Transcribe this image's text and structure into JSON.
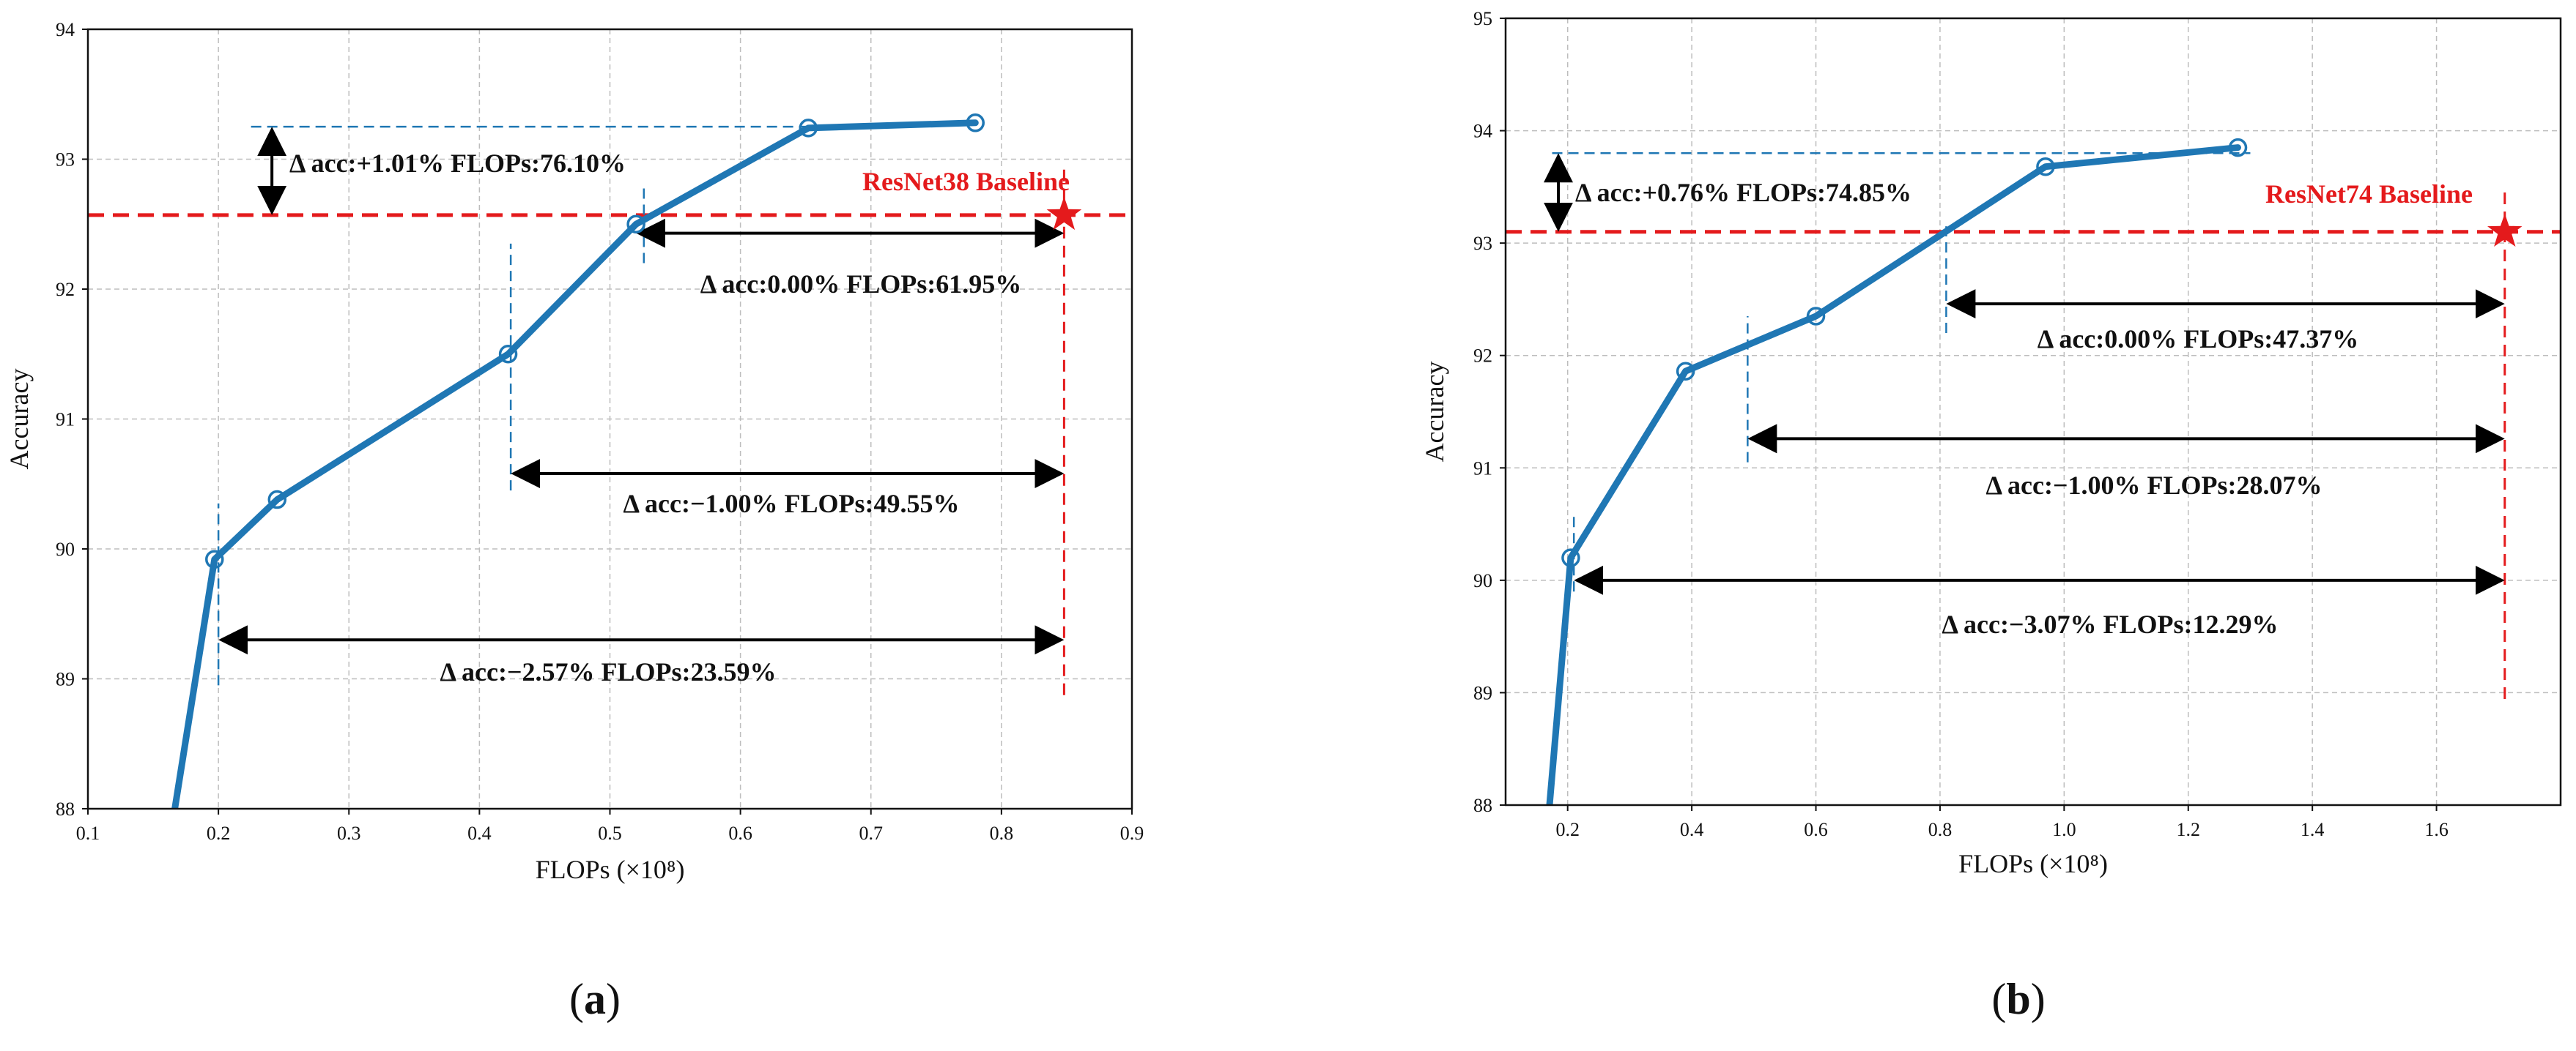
{
  "chart_data": [
    {
      "type": "line",
      "panel_label": "a",
      "xlabel": "FLOPs (×10⁸)",
      "ylabel": "Accuracy",
      "xlim": [
        0.1,
        0.9
      ],
      "ylim": [
        88,
        94
      ],
      "x_ticks": [
        "0.1",
        "0.2",
        "0.3",
        "0.4",
        "0.5",
        "0.6",
        "0.7",
        "0.8",
        "0.9"
      ],
      "y_ticks": [
        "88",
        "89",
        "90",
        "91",
        "92",
        "93",
        "94"
      ],
      "grid": true,
      "colors": {
        "line": "#1f77b4",
        "baseline": "#e41a1c",
        "arrow": "#000000"
      },
      "series": [
        {
          "x": [
            0.165,
            0.197,
            0.245,
            0.422,
            0.52,
            0.652,
            0.78
          ],
          "y": [
            87.9,
            89.92,
            90.38,
            91.5,
            92.5,
            93.24,
            93.28
          ]
        }
      ],
      "baseline": {
        "label": "ResNet38 Baseline",
        "x": 0.848,
        "y": 92.57
      },
      "annotations": [
        {
          "text": "Δ acc:+1.01%  FLOPs:76.10%",
          "kind": "vertical",
          "x": 0.241,
          "y1": 92.57,
          "y2": 93.25,
          "dash_x_from": 0.225,
          "dash_x_to": 0.652,
          "dash_y": 93.25
        },
        {
          "text": "Δ acc:0.00%   FLOPs:61.95%",
          "kind": "horizontal",
          "y": 92.43,
          "x1": 0.52,
          "x2": 0.848,
          "dash_x": 0.526,
          "dash_y1": 92.2,
          "dash_y2": 92.8
        },
        {
          "text": "Δ acc:−1.00%   FLOPs:49.55%",
          "kind": "horizontal",
          "y": 90.58,
          "x1": 0.424,
          "x2": 0.848,
          "dash_x": 0.424,
          "dash_y1": 90.45,
          "dash_y2": 92.35
        },
        {
          "text": "Δ acc:−2.57%   FLOPs:23.59%",
          "kind": "horizontal",
          "y": 89.3,
          "x1": 0.2,
          "x2": 0.848,
          "dash_x": 0.2,
          "dash_y1": 88.95,
          "dash_y2": 90.35
        }
      ]
    },
    {
      "type": "line",
      "panel_label": "b",
      "xlabel": "FLOPs (×10⁸)",
      "ylabel": "Accuracy",
      "xlim": [
        0.1,
        1.8
      ],
      "ylim": [
        88,
        95
      ],
      "x_ticks": [
        "0.2",
        "0.4",
        "0.6",
        "0.8",
        "1.0",
        "1.2",
        "1.4",
        "1.6"
      ],
      "y_ticks": [
        "88",
        "89",
        "90",
        "91",
        "92",
        "93",
        "94",
        "95"
      ],
      "grid": true,
      "colors": {
        "line": "#1f77b4",
        "baseline": "#e41a1c",
        "arrow": "#000000"
      },
      "series": [
        {
          "x": [
            0.17,
            0.205,
            0.39,
            0.6,
            0.97,
            1.28
          ],
          "y": [
            87.95,
            90.2,
            91.86,
            92.35,
            93.68,
            93.85
          ]
        }
      ],
      "baseline": {
        "label": "ResNet74 Baseline",
        "x": 1.71,
        "y": 93.1
      },
      "annotations": [
        {
          "text": "Δ acc:+0.76%  FLOPs:74.85%",
          "kind": "vertical",
          "x": 0.185,
          "y1": 93.1,
          "y2": 93.8,
          "dash_x_from": 0.175,
          "dash_x_to": 1.3,
          "dash_y": 93.8
        },
        {
          "text": "Δ acc:0.00%   FLOPs:47.37%",
          "kind": "horizontal",
          "y": 92.46,
          "x1": 0.81,
          "x2": 1.71,
          "dash_x": 0.81,
          "dash_y1": 92.2,
          "dash_y2": 93.15
        },
        {
          "text": "Δ acc:−1.00%   FLOPs:28.07%",
          "kind": "horizontal",
          "y": 91.26,
          "x1": 0.49,
          "x2": 1.71,
          "dash_x": 0.49,
          "dash_y1": 91.05,
          "dash_y2": 92.35
        },
        {
          "text": "Δ acc:−3.07%   FLOPs:12.29%",
          "kind": "horizontal",
          "y": 90.0,
          "x1": 0.21,
          "x2": 1.71,
          "dash_x": 0.21,
          "dash_y1": 89.9,
          "dash_y2": 90.6
        }
      ]
    }
  ]
}
